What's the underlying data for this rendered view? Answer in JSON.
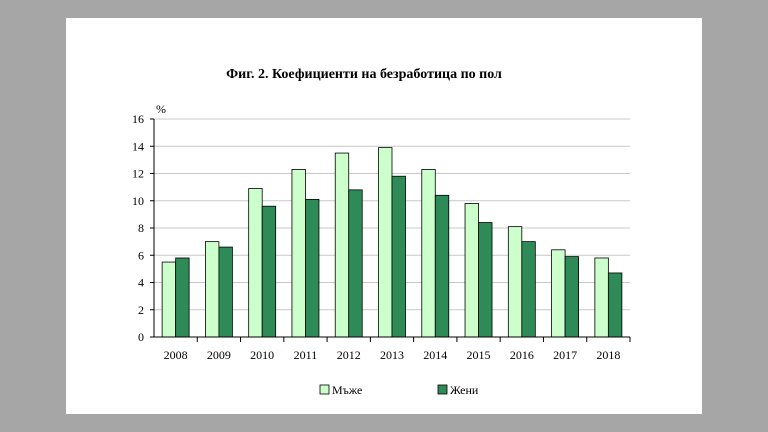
{
  "chart_data": {
    "type": "bar",
    "title": "Фиг. 2. Коефициенти на безработица по пол",
    "ylabel": "%",
    "xlabel": "",
    "ylim": [
      0,
      16
    ],
    "yticks": [
      0,
      2,
      4,
      6,
      8,
      10,
      12,
      14,
      16
    ],
    "grid": true,
    "legend_position": "bottom",
    "categories": [
      "2008",
      "2009",
      "2010",
      "2011",
      "2012",
      "2013",
      "2014",
      "2015",
      "2016",
      "2017",
      "2018"
    ],
    "series": [
      {
        "name": "Мъже",
        "color": "#ccffcc",
        "values": [
          5.5,
          7.0,
          10.9,
          12.3,
          13.5,
          13.9,
          12.3,
          9.8,
          8.1,
          6.4,
          5.8
        ]
      },
      {
        "name": "Жени",
        "color": "#2e8b57",
        "values": [
          5.8,
          6.6,
          9.6,
          10.1,
          10.8,
          11.8,
          10.4,
          8.4,
          7.0,
          5.9,
          4.7
        ]
      }
    ]
  }
}
